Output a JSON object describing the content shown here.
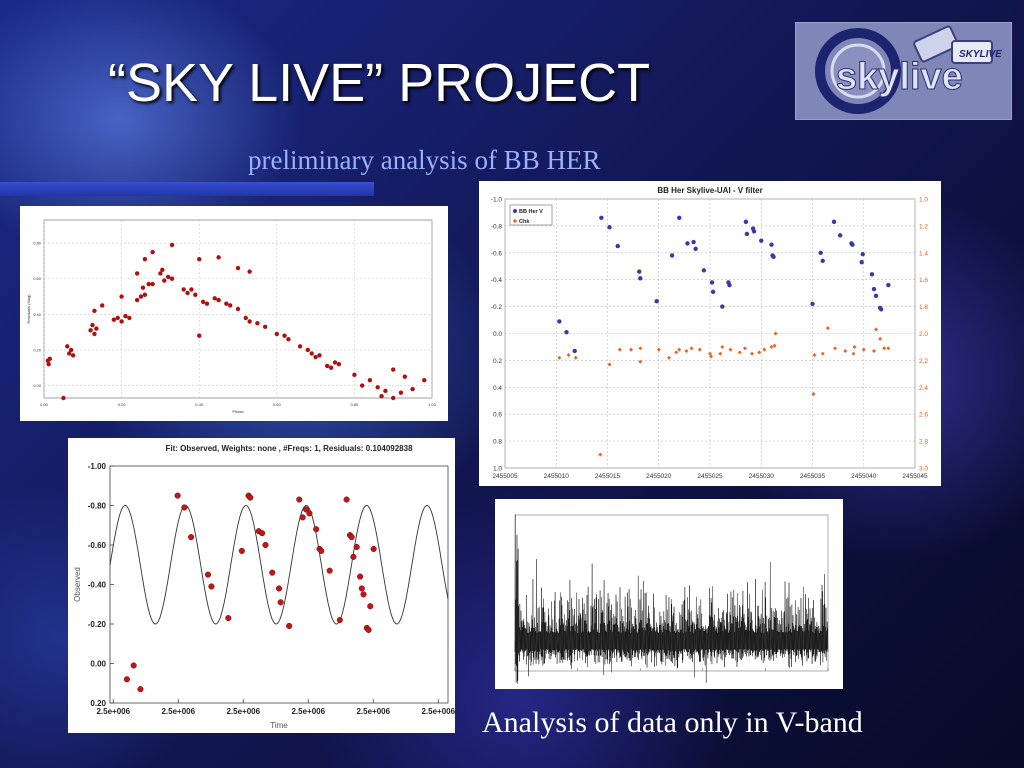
{
  "slide": {
    "title": "“SKY LIVE” PROJECT",
    "subtitle": "preliminary analysis of BB HER",
    "caption": "Analysis of data only in V-band"
  },
  "logo": {
    "text": "skylive",
    "badge": "SKYLIVE",
    "icon": "camera-icon"
  },
  "colors": {
    "title": "#ffffff",
    "subtitle": "#9bb0ff",
    "bar": "#2f44c4",
    "series_red": "#b01010",
    "series_blue": "#3a3aa0",
    "series_orange": "#f06020"
  },
  "chart_data": [
    {
      "id": "phase",
      "type": "scatter",
      "title": "",
      "xlabel": "Phase",
      "ylabel": "Residuals (Mag)",
      "xlim": [
        0,
        1
      ],
      "ylim": [
        0.0,
        1.0
      ],
      "y_reversed": true,
      "xticks": [
        "0.00",
        "0.20",
        "0.40",
        "0.60",
        "0.80",
        "1.00"
      ],
      "yticks": [
        "0.00",
        "0.20",
        "0.40",
        "0.60",
        "0.80"
      ],
      "grid": true,
      "points": [
        [
          0.01,
          0.21
        ],
        [
          0.012,
          0.19
        ],
        [
          0.015,
          0.22
        ],
        [
          0.05,
          0.0
        ],
        [
          0.065,
          0.25
        ],
        [
          0.07,
          0.27
        ],
        [
          0.075,
          0.24
        ],
        [
          0.12,
          0.38
        ],
        [
          0.125,
          0.41
        ],
        [
          0.13,
          0.36
        ],
        [
          0.135,
          0.39
        ],
        [
          0.18,
          0.44
        ],
        [
          0.19,
          0.45
        ],
        [
          0.2,
          0.43
        ],
        [
          0.21,
          0.46
        ],
        [
          0.22,
          0.45
        ],
        [
          0.24,
          0.55
        ],
        [
          0.25,
          0.57
        ],
        [
          0.255,
          0.62
        ],
        [
          0.26,
          0.58
        ],
        [
          0.27,
          0.64
        ],
        [
          0.28,
          0.64
        ],
        [
          0.3,
          0.7
        ],
        [
          0.305,
          0.72
        ],
        [
          0.31,
          0.66
        ],
        [
          0.32,
          0.68
        ],
        [
          0.33,
          0.67
        ],
        [
          0.36,
          0.61
        ],
        [
          0.37,
          0.59
        ],
        [
          0.38,
          0.61
        ],
        [
          0.39,
          0.58
        ],
        [
          0.41,
          0.54
        ],
        [
          0.42,
          0.53
        ],
        [
          0.44,
          0.56
        ],
        [
          0.45,
          0.55
        ],
        [
          0.47,
          0.53
        ],
        [
          0.48,
          0.52
        ],
        [
          0.5,
          0.5
        ],
        [
          0.52,
          0.45
        ],
        [
          0.53,
          0.43
        ],
        [
          0.55,
          0.42
        ],
        [
          0.57,
          0.4
        ],
        [
          0.6,
          0.36
        ],
        [
          0.62,
          0.35
        ],
        [
          0.63,
          0.33
        ],
        [
          0.66,
          0.29
        ],
        [
          0.68,
          0.27
        ],
        [
          0.69,
          0.25
        ],
        [
          0.7,
          0.23
        ],
        [
          0.71,
          0.24
        ],
        [
          0.73,
          0.18
        ],
        [
          0.74,
          0.17
        ],
        [
          0.75,
          0.2
        ],
        [
          0.76,
          0.19
        ],
        [
          0.8,
          0.13
        ],
        [
          0.82,
          0.07
        ],
        [
          0.84,
          0.1
        ],
        [
          0.86,
          0.06
        ],
        [
          0.87,
          0.01
        ],
        [
          0.88,
          0.04
        ],
        [
          0.9,
          0.0
        ],
        [
          0.92,
          0.03
        ],
        [
          0.95,
          0.05
        ],
        [
          0.98,
          0.1
        ],
        [
          0.4,
          0.35
        ],
        [
          0.4,
          0.78
        ],
        [
          0.45,
          0.79
        ],
        [
          0.5,
          0.73
        ],
        [
          0.53,
          0.71
        ],
        [
          0.33,
          0.86
        ],
        [
          0.28,
          0.82
        ],
        [
          0.26,
          0.78
        ],
        [
          0.24,
          0.7
        ],
        [
          0.2,
          0.57
        ],
        [
          0.15,
          0.52
        ],
        [
          0.13,
          0.49
        ],
        [
          0.06,
          0.29
        ],
        [
          0.9,
          0.16
        ],
        [
          0.93,
          0.12
        ]
      ]
    },
    {
      "id": "vfilter",
      "type": "scatter",
      "title": "BB Her Skylive-UAI - V filter",
      "xlim": [
        2455005,
        2455045
      ],
      "ylim_left": [
        -1.0,
        1.0
      ],
      "ylim_right": [
        1.0,
        3.0
      ],
      "xticks": [
        "2455005",
        "2455010",
        "2455015",
        "2455020",
        "2455025",
        "2455030",
        "2455035",
        "2455040",
        "2455045"
      ],
      "yticks_left": [
        "-1.0",
        "-0.8",
        "-0.6",
        "-0.4",
        "-0.2",
        "0.0",
        "0.2",
        "0.4",
        "0.6",
        "0.8",
        "1.0"
      ],
      "yticks_right": [
        "1.0",
        "1.2",
        "1.4",
        "1.6",
        "1.8",
        "2.0",
        "2.2",
        "2.4",
        "2.6",
        "2.8",
        "3.0"
      ],
      "grid": true,
      "legend": [
        "BB Her V",
        "Chk"
      ],
      "series": [
        {
          "name": "BB Her V",
          "points": [
            [
              2455010.3,
              -0.09
            ],
            [
              2455011.0,
              -0.01
            ],
            [
              2455011.8,
              0.13
            ],
            [
              2455014.4,
              -0.86
            ],
            [
              2455015.2,
              -0.79
            ],
            [
              2455016.0,
              -0.65
            ],
            [
              2455018.1,
              -0.46
            ],
            [
              2455018.2,
              -0.41
            ],
            [
              2455019.8,
              -0.24
            ],
            [
              2455021.3,
              -0.58
            ],
            [
              2455022.0,
              -0.86
            ],
            [
              2455022.8,
              -0.67
            ],
            [
              2455023.4,
              -0.68
            ],
            [
              2455023.6,
              -0.63
            ],
            [
              2455024.4,
              -0.47
            ],
            [
              2455025.2,
              -0.38
            ],
            [
              2455025.3,
              -0.31
            ],
            [
              2455026.2,
              -0.2
            ],
            [
              2455026.8,
              -0.38
            ],
            [
              2455026.9,
              -0.36
            ],
            [
              2455028.5,
              -0.83
            ],
            [
              2455028.6,
              -0.74
            ],
            [
              2455029.2,
              -0.78
            ],
            [
              2455029.3,
              -0.76
            ],
            [
              2455030.0,
              -0.69
            ],
            [
              2455031.0,
              -0.66
            ],
            [
              2455031.1,
              -0.58
            ],
            [
              2455031.2,
              -0.57
            ],
            [
              2455035.0,
              -0.22
            ],
            [
              2455035.8,
              -0.6
            ],
            [
              2455036.0,
              -0.54
            ],
            [
              2455037.1,
              -0.83
            ],
            [
              2455037.7,
              -0.73
            ],
            [
              2455038.8,
              -0.67
            ],
            [
              2455038.9,
              -0.66
            ],
            [
              2455039.8,
              -0.53
            ],
            [
              2455039.9,
              -0.59
            ],
            [
              2455040.8,
              -0.44
            ],
            [
              2455041.0,
              -0.33
            ],
            [
              2455041.2,
              -0.28
            ],
            [
              2455041.6,
              -0.19
            ],
            [
              2455041.7,
              -0.18
            ],
            [
              2455042.4,
              -0.36
            ]
          ]
        },
        {
          "name": "Chk",
          "points": [
            [
              2455010.3,
              2.18
            ],
            [
              2455011.2,
              2.16
            ],
            [
              2455011.9,
              2.18
            ],
            [
              2455014.3,
              2.9
            ],
            [
              2455015.2,
              2.23
            ],
            [
              2455016.2,
              2.12
            ],
            [
              2455017.3,
              2.12
            ],
            [
              2455018.2,
              2.21
            ],
            [
              2455018.2,
              2.11
            ],
            [
              2455020.0,
              2.12
            ],
            [
              2455021.0,
              2.18
            ],
            [
              2455021.7,
              2.14
            ],
            [
              2455022.0,
              2.12
            ],
            [
              2455022.7,
              2.13
            ],
            [
              2455023.2,
              2.11
            ],
            [
              2455024.0,
              2.12
            ],
            [
              2455025.0,
              2.15
            ],
            [
              2455025.1,
              2.17
            ],
            [
              2455026.0,
              2.15
            ],
            [
              2455026.2,
              2.1
            ],
            [
              2455027.0,
              2.12
            ],
            [
              2455027.9,
              2.14
            ],
            [
              2455028.4,
              2.11
            ],
            [
              2455029.1,
              2.15
            ],
            [
              2455029.8,
              2.14
            ],
            [
              2455030.3,
              2.12
            ],
            [
              2455031.0,
              2.1
            ],
            [
              2455031.3,
              2.09
            ],
            [
              2455031.4,
              2.0
            ],
            [
              2455035.1,
              2.45
            ],
            [
              2455035.2,
              2.16
            ],
            [
              2455036.0,
              2.15
            ],
            [
              2455036.5,
              1.96
            ],
            [
              2455037.2,
              2.11
            ],
            [
              2455038.2,
              2.13
            ],
            [
              2455039.0,
              2.15
            ],
            [
              2455039.1,
              2.1
            ],
            [
              2455040.0,
              2.12
            ],
            [
              2455041.0,
              2.13
            ],
            [
              2455041.2,
              1.97
            ],
            [
              2455041.6,
              2.04
            ],
            [
              2455042.0,
              2.11
            ],
            [
              2455042.4,
              2.11
            ]
          ]
        }
      ]
    },
    {
      "id": "fit",
      "type": "line",
      "title": "Fit: Observed,  Weights:  none ,  #Freqs: 1,  Residuals: 0.104092838",
      "xlabel": "Time",
      "ylabel": "Observed",
      "ylim": [
        -1.0,
        0.2
      ],
      "y_reversed": true,
      "xticks": [
        "2.5e+006",
        "2.5e+006",
        "2.5e+006",
        "2.5e+006",
        "2.5e+006",
        "2.5e+006"
      ],
      "yticks": [
        "-1.00",
        "-0.80",
        "-0.60",
        "-0.40",
        "-0.20",
        "0.00",
        "0.20"
      ],
      "grid": false,
      "model": {
        "offset": -0.5,
        "amplitude": 0.3,
        "cycles": 5.6,
        "phase": 1.56
      },
      "points": [
        [
          0.25,
          0.08
        ],
        [
          0.27,
          0.01
        ],
        [
          0.29,
          0.13
        ],
        [
          0.4,
          -0.85
        ],
        [
          0.42,
          -0.79
        ],
        [
          0.44,
          -0.64
        ],
        [
          0.49,
          -0.45
        ],
        [
          0.5,
          -0.39
        ],
        [
          0.55,
          -0.23
        ],
        [
          0.59,
          -0.57
        ],
        [
          0.61,
          -0.85
        ],
        [
          0.615,
          -0.84
        ],
        [
          0.64,
          -0.67
        ],
        [
          0.65,
          -0.66
        ],
        [
          0.66,
          -0.6
        ],
        [
          0.68,
          -0.46
        ],
        [
          0.7,
          -0.38
        ],
        [
          0.705,
          -0.31
        ],
        [
          0.73,
          -0.19
        ],
        [
          0.76,
          -0.83
        ],
        [
          0.77,
          -0.74
        ],
        [
          0.78,
          -0.78
        ],
        [
          0.79,
          -0.76
        ],
        [
          0.81,
          -0.68
        ],
        [
          0.82,
          -0.58
        ],
        [
          0.825,
          -0.57
        ],
        [
          0.85,
          -0.47
        ],
        [
          0.88,
          -0.22
        ],
        [
          0.9,
          -0.83
        ],
        [
          0.91,
          -0.65
        ],
        [
          0.915,
          -0.64
        ],
        [
          0.92,
          -0.54
        ],
        [
          0.93,
          -0.59
        ],
        [
          0.94,
          -0.44
        ],
        [
          0.945,
          -0.38
        ],
        [
          0.95,
          -0.35
        ],
        [
          0.96,
          -0.18
        ],
        [
          0.965,
          -0.17
        ],
        [
          0.97,
          -0.29
        ],
        [
          0.98,
          -0.58
        ]
      ]
    },
    {
      "id": "periodogram",
      "type": "line",
      "title": "",
      "xlabel": "",
      "ylabel": "",
      "series": "dense noise spectrum with strong low-frequency peaks"
    }
  ]
}
